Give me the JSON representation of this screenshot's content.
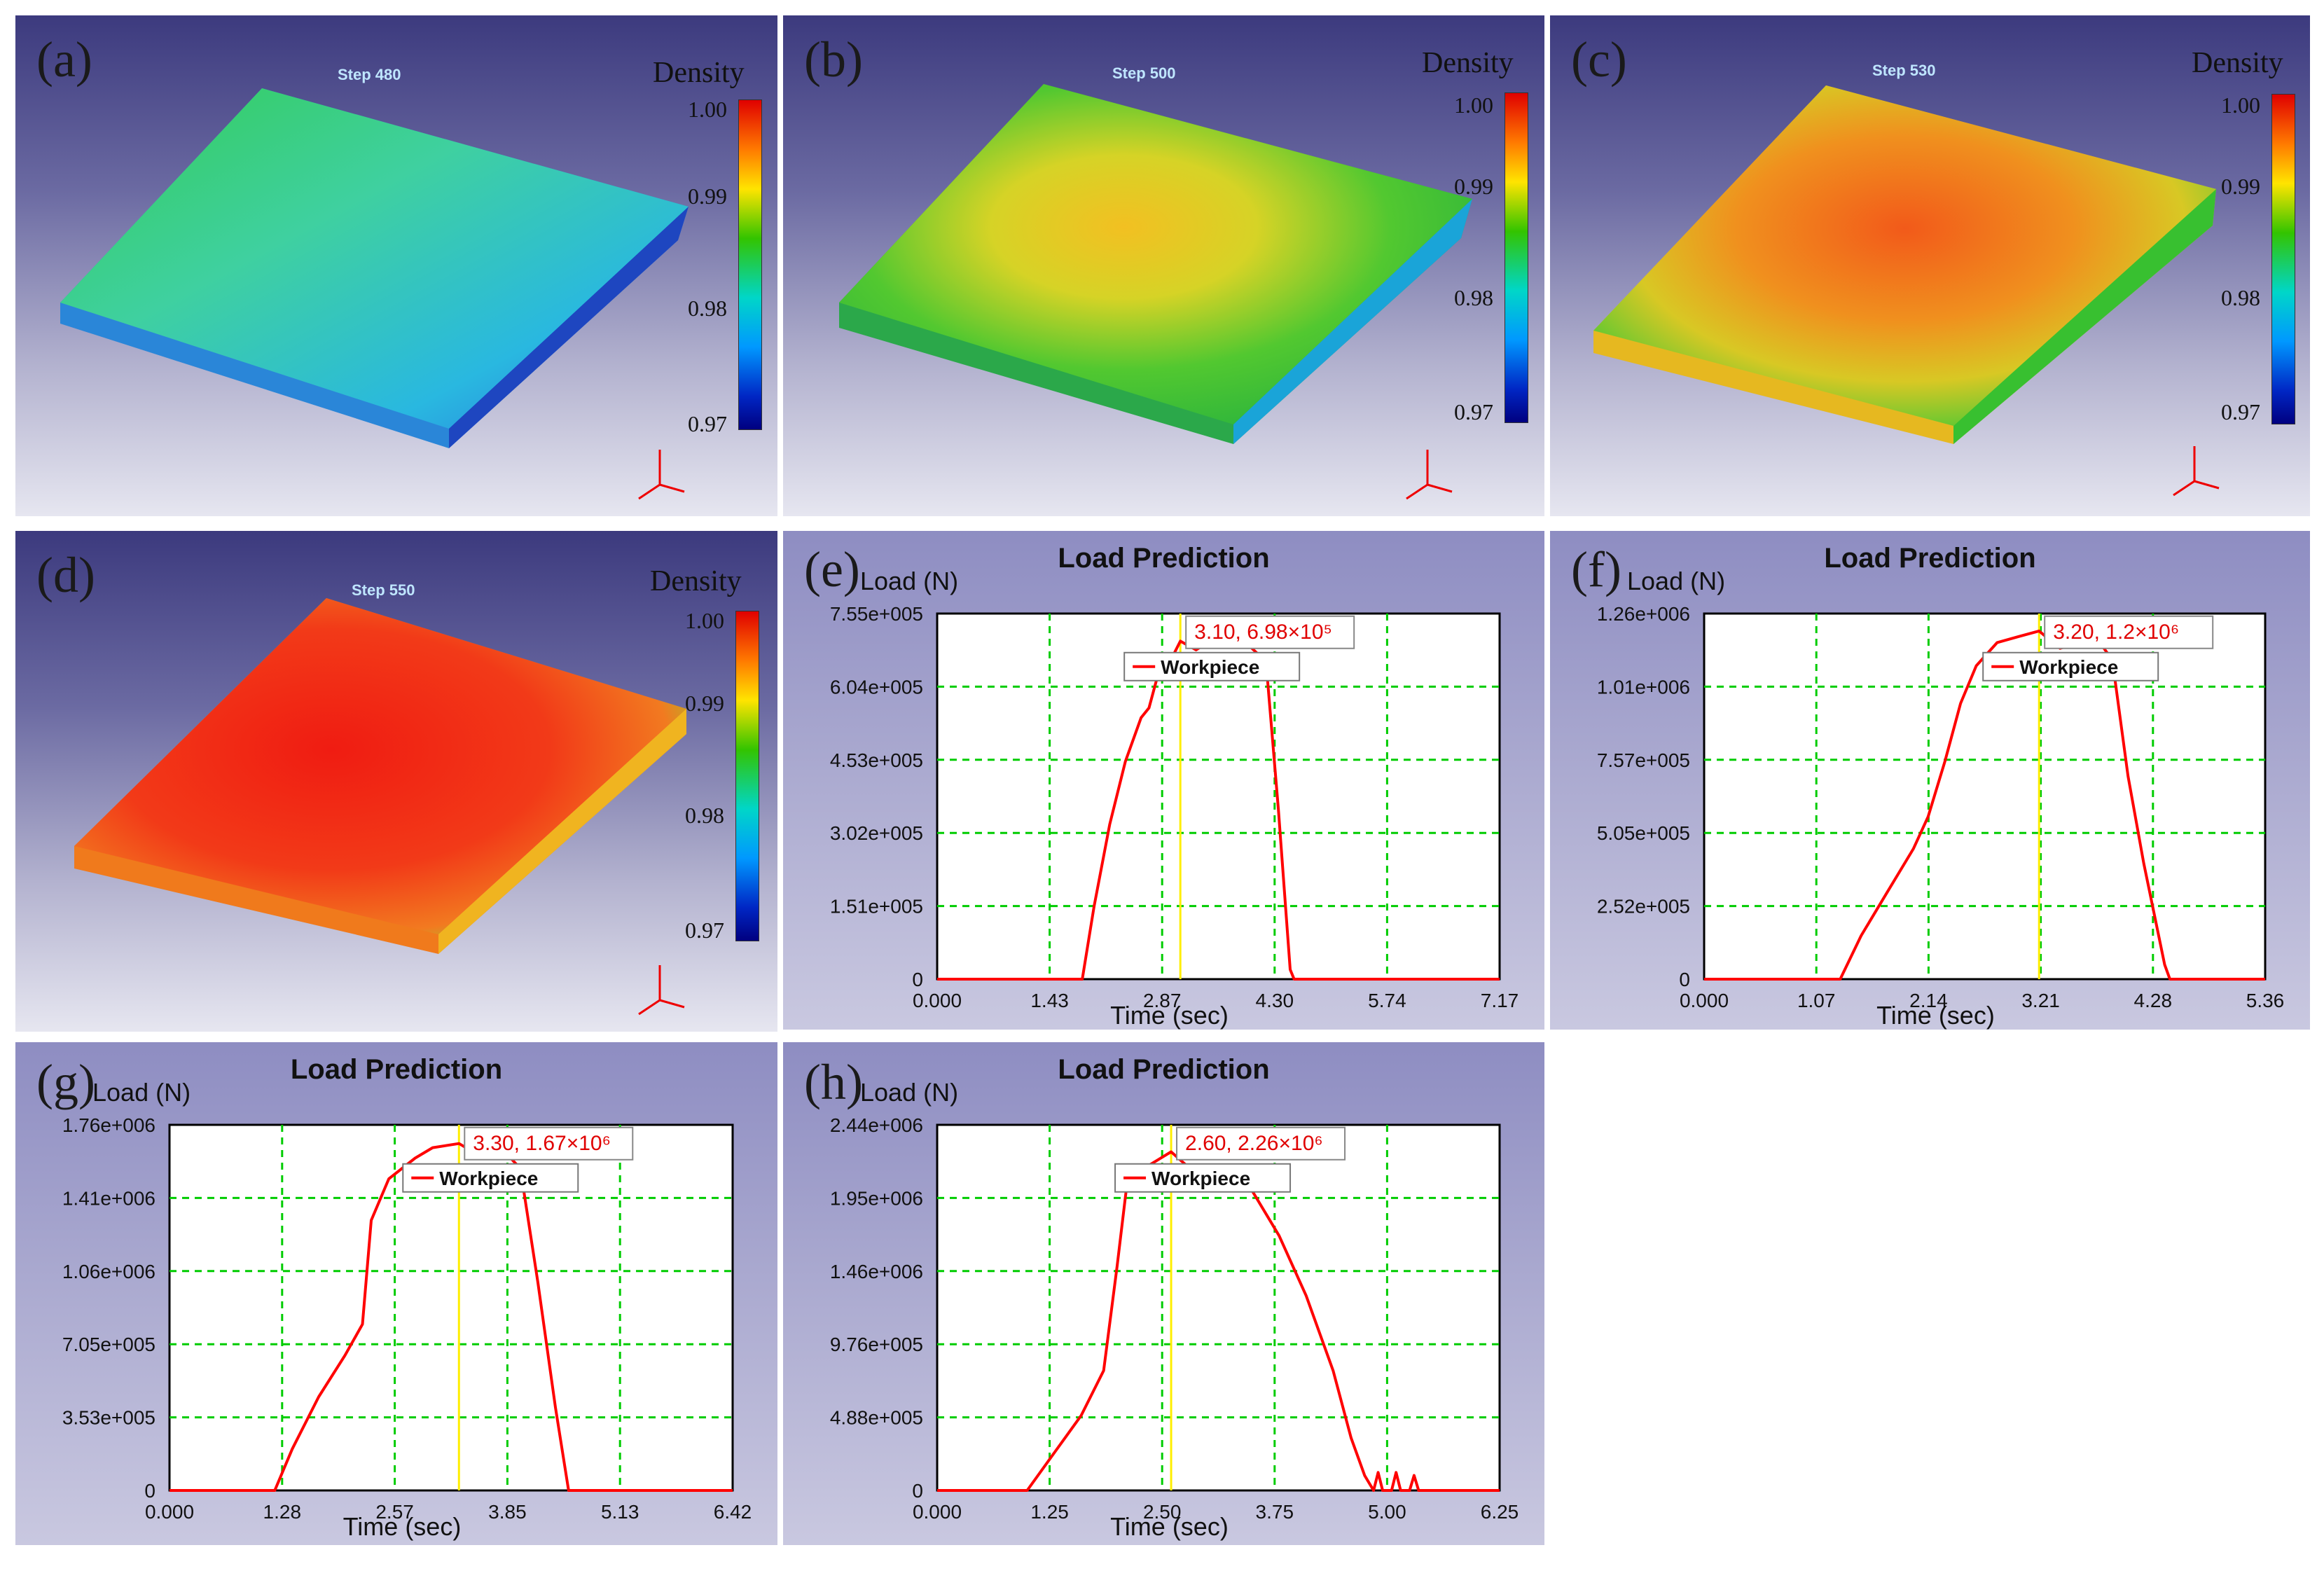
{
  "panels": [
    {
      "label": "(a)",
      "step": "Step 480"
    },
    {
      "label": "(b)",
      "step": "Step 500"
    },
    {
      "label": "(c)",
      "step": "Step 530"
    },
    {
      "label": "(d)",
      "step": "Step 550"
    },
    {
      "label": "(e)"
    },
    {
      "label": "(f)"
    },
    {
      "label": "(g)"
    },
    {
      "label": "(h)"
    }
  ],
  "colorbar": {
    "title": "Density",
    "ticks": [
      "1.00",
      "0.99",
      "0.98",
      "0.97"
    ]
  },
  "colors": {
    "curve": "#ff0000",
    "grid": "#00cc00",
    "cursor": "#ffee00",
    "annot": "#e00000"
  },
  "chart_data": [
    {
      "type": "line",
      "id": "e",
      "title": "Load Prediction",
      "ylabel": "Load (N)",
      "xlabel": "Time (sec)",
      "xticks": [
        "0.000",
        "1.43",
        "2.87",
        "4.30",
        "5.74",
        "7.17"
      ],
      "yticks": [
        "0",
        "1.51e+005",
        "3.02e+005",
        "4.53e+005",
        "6.04e+005",
        "7.55e+005"
      ],
      "xlim": [
        0,
        7.17
      ],
      "ylim": [
        0,
        755000
      ],
      "legend": "Workpiece",
      "cursor_x": 3.1,
      "annotation": {
        "x": "3.10",
        "y": "6.98",
        "exp": "5",
        "text": "3.10,  6.98×10⁵"
      },
      "series": [
        {
          "name": "Workpiece",
          "x": [
            0,
            1.85,
            2.0,
            2.2,
            2.4,
            2.6,
            2.7,
            2.8,
            2.95,
            3.1,
            3.3,
            3.5,
            3.7,
            3.9,
            4.1,
            4.2,
            4.35,
            4.5,
            4.55,
            7.17
          ],
          "y": [
            0,
            0,
            150000,
            320000,
            450000,
            540000,
            560000,
            620000,
            650000,
            698000,
            680000,
            700000,
            690000,
            700000,
            670000,
            640000,
            350000,
            20000,
            0,
            0
          ]
        }
      ]
    },
    {
      "type": "line",
      "id": "f",
      "title": "Load Prediction",
      "ylabel": "Load (N)",
      "xlabel": "Time (sec)",
      "xticks": [
        "0.000",
        "1.07",
        "2.14",
        "3.21",
        "4.28",
        "5.36"
      ],
      "yticks": [
        "0",
        "2.52e+005",
        "5.05e+005",
        "7.57e+005",
        "1.01e+006",
        "1.26e+006"
      ],
      "xlim": [
        0,
        5.36
      ],
      "ylim": [
        0,
        1260000
      ],
      "legend": "Workpiece",
      "cursor_x": 3.2,
      "annotation": {
        "x": "3.20",
        "y": "1.2",
        "exp": "6",
        "text": "3.20,  1.2×10⁶"
      },
      "series": [
        {
          "name": "Workpiece",
          "x": [
            0,
            1.3,
            1.5,
            1.75,
            2.0,
            2.14,
            2.3,
            2.45,
            2.6,
            2.8,
            3.0,
            3.2,
            3.4,
            3.6,
            3.8,
            3.9,
            4.05,
            4.2,
            4.4,
            4.45,
            5.36
          ],
          "y": [
            0,
            0,
            150000,
            300000,
            450000,
            560000,
            750000,
            950000,
            1080000,
            1160000,
            1180000,
            1200000,
            1140000,
            1160000,
            1150000,
            1100000,
            700000,
            400000,
            50000,
            0,
            0
          ]
        }
      ]
    },
    {
      "type": "line",
      "id": "g",
      "title": "Load Prediction",
      "ylabel": "Load (N)",
      "xlabel": "Time (sec)",
      "xticks": [
        "0.000",
        "1.28",
        "2.57",
        "3.85",
        "5.13",
        "6.42"
      ],
      "yticks": [
        "0",
        "3.53e+005",
        "7.05e+005",
        "1.06e+006",
        "1.41e+006",
        "1.76e+006"
      ],
      "xlim": [
        0,
        6.42
      ],
      "ylim": [
        0,
        1760000
      ],
      "legend": "Workpiece",
      "cursor_x": 3.3,
      "annotation": {
        "x": "3.30",
        "y": "1.67",
        "exp": "6",
        "text": "3.30,  1.67×10⁶"
      },
      "series": [
        {
          "name": "Workpiece",
          "x": [
            0,
            1.2,
            1.4,
            1.7,
            2.0,
            2.2,
            2.3,
            2.5,
            2.8,
            3.0,
            3.3,
            3.5,
            3.8,
            4.0,
            4.2,
            4.4,
            4.55,
            6.42
          ],
          "y": [
            0,
            0,
            200000,
            450000,
            650000,
            800000,
            1300000,
            1500000,
            1600000,
            1650000,
            1670000,
            1620000,
            1640000,
            1550000,
            1000000,
            400000,
            0,
            0
          ]
        }
      ]
    },
    {
      "type": "line",
      "id": "h",
      "title": "Load Prediction",
      "ylabel": "Load (N)",
      "xlabel": "Time (sec)",
      "xticks": [
        "0.000",
        "1.25",
        "2.50",
        "3.75",
        "5.00",
        "6.25"
      ],
      "yticks": [
        "0",
        "4.88e+005",
        "9.76e+005",
        "1.46e+006",
        "1.95e+006",
        "2.44e+006"
      ],
      "xlim": [
        0,
        6.25
      ],
      "ylim": [
        0,
        2440000
      ],
      "legend": "Workpiece",
      "cursor_x": 2.6,
      "annotation": {
        "x": "2.60",
        "y": "2.26",
        "exp": "6",
        "text": "2.60,  2.26×10⁶"
      },
      "series": [
        {
          "name": "Workpiece",
          "x": [
            0,
            1.0,
            1.3,
            1.6,
            1.85,
            2.0,
            2.1,
            2.3,
            2.6,
            2.9,
            3.2,
            3.5,
            3.8,
            4.1,
            4.4,
            4.6,
            4.75,
            4.85,
            4.9,
            4.95,
            5.05,
            5.1,
            5.15,
            5.25,
            5.3,
            5.35,
            5.4,
            6.25
          ],
          "y": [
            0,
            0,
            250000,
            500000,
            800000,
            1500000,
            2000000,
            2150000,
            2260000,
            2100000,
            2150000,
            2000000,
            1700000,
            1300000,
            800000,
            350000,
            100000,
            0,
            120000,
            0,
            0,
            120000,
            0,
            0,
            100000,
            0,
            0,
            0
          ]
        }
      ]
    }
  ]
}
